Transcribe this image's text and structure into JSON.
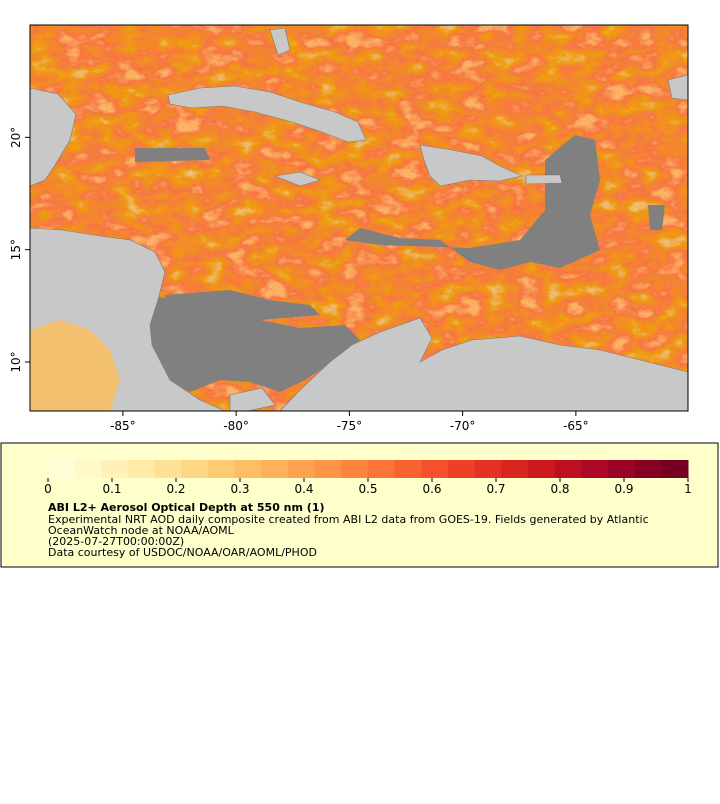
{
  "map": {
    "xlim": [
      -89.1,
      -60.05
    ],
    "ylim": [
      7.82,
      25
    ],
    "lon_ticks": [
      {
        "value": -85,
        "label": "-85°"
      },
      {
        "value": -80,
        "label": "-80°"
      },
      {
        "value": -75,
        "label": "-75°"
      },
      {
        "value": -70,
        "label": "-70°"
      },
      {
        "value": -65,
        "label": "-65°"
      }
    ],
    "lat_ticks": [
      {
        "value": 10,
        "label": "10°"
      },
      {
        "value": 15,
        "label": "15°"
      },
      {
        "value": 20,
        "label": "20°"
      }
    ]
  },
  "legend": {
    "colorbar": {
      "range": [
        0,
        1
      ],
      "ticks": [
        0,
        0.1,
        0.2,
        0.3,
        0.4,
        0.5,
        0.6,
        0.7,
        0.8,
        0.9,
        1
      ],
      "colors": [
        "#fffdd6",
        "#fff8c8",
        "#fff1b8",
        "#ffeaa6",
        "#ffe196",
        "#fed785",
        "#fecb74",
        "#febe66",
        "#feb15b",
        "#fea24f",
        "#fd9446",
        "#fd843f",
        "#fc7438",
        "#f96332",
        "#f4512c",
        "#ee4026",
        "#e43123",
        "#d92520",
        "#cc191e",
        "#bd0f22",
        "#ad0826",
        "#9a0326",
        "#860024",
        "#750022"
      ]
    },
    "title": "ABI L2+ Aerosol Optical Depth at 550 nm (1)",
    "lines": [
      "Experimental NRT AOD daily composite created from ABI L2 data from GOES-19. Fields generated by Atlantic",
      "OceanWatch node at NOAA/AOML",
      "(2025-07-27T00:00:00Z)",
      "Data courtesy of USDOC/NOAA/OAR/AOML/PHOD"
    ]
  }
}
